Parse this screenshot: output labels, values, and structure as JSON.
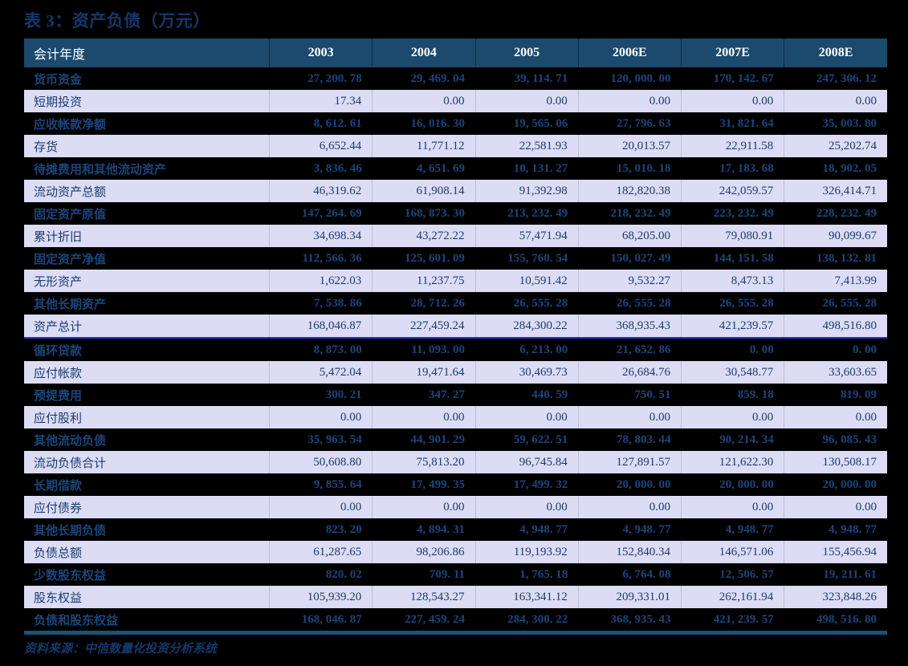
{
  "page": {
    "title": "表 3：资产负债（万元）",
    "source_note": "资料来源：中信数量化投资分析系统"
  },
  "colors": {
    "page_background": "#000000",
    "title_text": "#14386b",
    "header_background": "#1b4a6e",
    "header_text": "#ffffff",
    "dark_row_background": "#000000",
    "dark_row_text": "#1a467c",
    "light_row_background": "#dcdcf5",
    "light_row_text": "#183c6e",
    "section_divider_line": "#2433cc",
    "table_bottom_border": "#1c5276"
  },
  "table": {
    "header": [
      "会计年度",
      "2003",
      "2004",
      "2005",
      "2006E",
      "2007E",
      "2008E"
    ],
    "rows": [
      {
        "label": "货币资金",
        "values": [
          "27, 200. 78",
          "29, 469. 04",
          "39, 114. 71",
          "120, 000. 00",
          "170, 142. 67",
          "247, 306. 12"
        ]
      },
      {
        "label": "短期投资",
        "values": [
          "17.34",
          "0.00",
          "0.00",
          "0.00",
          "0.00",
          "0.00"
        ]
      },
      {
        "label": "应收帐款净额",
        "values": [
          "8, 612. 61",
          "16, 016. 30",
          "19, 565. 06",
          "27, 796. 63",
          "31, 821. 64",
          "35, 003. 80"
        ]
      },
      {
        "label": "存货",
        "values": [
          "6,652.44",
          "11,771.12",
          "22,581.93",
          "20,013.57",
          "22,911.58",
          "25,202.74"
        ]
      },
      {
        "label": "待摊费用和其他流动资产",
        "values": [
          "3, 836. 46",
          "4, 651. 69",
          "10, 131. 27",
          "15, 010. 18",
          "17, 183. 68",
          "18, 902. 05"
        ]
      },
      {
        "label": "流动资产总额",
        "values": [
          "46,319.62",
          "61,908.14",
          "91,392.98",
          "182,820.38",
          "242,059.57",
          "326,414.71"
        ]
      },
      {
        "label": "固定资产原值",
        "values": [
          "147, 264. 69",
          "168, 873. 30",
          "213, 232. 49",
          "218, 232. 49",
          "223, 232. 49",
          "228, 232. 49"
        ]
      },
      {
        "label": "累计折旧",
        "values": [
          "34,698.34",
          "43,272.22",
          "57,471.94",
          "68,205.00",
          "79,080.91",
          "90,099.67"
        ]
      },
      {
        "label": "固定资产净值",
        "values": [
          "112, 566. 36",
          "125, 601. 09",
          "155, 760. 54",
          "150, 027. 49",
          "144, 151. 58",
          "138, 132. 81"
        ]
      },
      {
        "label": "无形资产",
        "values": [
          "1,622.03",
          "11,237.75",
          "10,591.42",
          "9,532.27",
          "8,473.13",
          "7,413.99"
        ]
      },
      {
        "label": "其他长期资产",
        "values": [
          "7, 538. 86",
          "28, 712. 26",
          "26, 555. 28",
          "26, 555. 28",
          "26, 555. 28",
          "26, 555. 28"
        ]
      },
      {
        "label": "资产总计",
        "divider_after": true,
        "values": [
          "168,046.87",
          "227,459.24",
          "284,300.22",
          "368,935.43",
          "421,239.57",
          "498,516.80"
        ]
      },
      {
        "label": "循环贷款",
        "values": [
          "8, 873. 00",
          "11, 093. 00",
          "6, 213. 00",
          "21, 652. 86",
          "0. 00",
          "0. 00"
        ]
      },
      {
        "label": "应付帐款",
        "values": [
          "5,472.04",
          "19,471.64",
          "30,469.73",
          "26,684.76",
          "30,548.77",
          "33,603.65"
        ]
      },
      {
        "label": "预提费用",
        "values": [
          "300. 21",
          "347. 27",
          "440. 59",
          "750. 51",
          "859. 18",
          "819. 09"
        ]
      },
      {
        "label": "应付股利",
        "values": [
          "0.00",
          "0.00",
          "0.00",
          "0.00",
          "0.00",
          "0.00"
        ]
      },
      {
        "label": "其他流动负债",
        "values": [
          "35, 963. 54",
          "44, 901. 29",
          "59, 622. 51",
          "78, 803. 44",
          "90, 214. 34",
          "96, 085. 43"
        ]
      },
      {
        "label": "流动负债合计",
        "values": [
          "50,608.80",
          "75,813.20",
          "96,745.84",
          "127,891.57",
          "121,622.30",
          "130,508.17"
        ]
      },
      {
        "label": "长期借款",
        "values": [
          "9, 855. 64",
          "17, 499. 35",
          "17, 499. 32",
          "20, 000. 00",
          "20, 000. 00",
          "20, 000. 00"
        ]
      },
      {
        "label": "应付债券",
        "values": [
          "0.00",
          "0.00",
          "0.00",
          "0.00",
          "0.00",
          "0.00"
        ]
      },
      {
        "label": "其他长期负债",
        "values": [
          "823. 20",
          "4, 894. 31",
          "4, 948. 77",
          "4, 948. 77",
          "4, 948. 77",
          "4, 948. 77"
        ]
      },
      {
        "label": "负债总额",
        "values": [
          "61,287.65",
          "98,206.86",
          "119,193.92",
          "152,840.34",
          "146,571.06",
          "155,456.94"
        ]
      },
      {
        "label": "少数股东权益",
        "values": [
          "820. 02",
          "709. 11",
          "1, 765. 18",
          "6, 764. 08",
          "12, 506. 57",
          "19, 211. 61"
        ]
      },
      {
        "label": "股东权益",
        "values": [
          "105,939.20",
          "128,543.27",
          "163,341.12",
          "209,331.01",
          "262,161.94",
          "323,848.26"
        ]
      },
      {
        "label": "负债和股东权益",
        "values": [
          "168, 046. 87",
          "227, 459. 24",
          "284, 300. 22",
          "368, 935. 43",
          "421, 239. 57",
          "498, 516. 80"
        ]
      }
    ]
  }
}
